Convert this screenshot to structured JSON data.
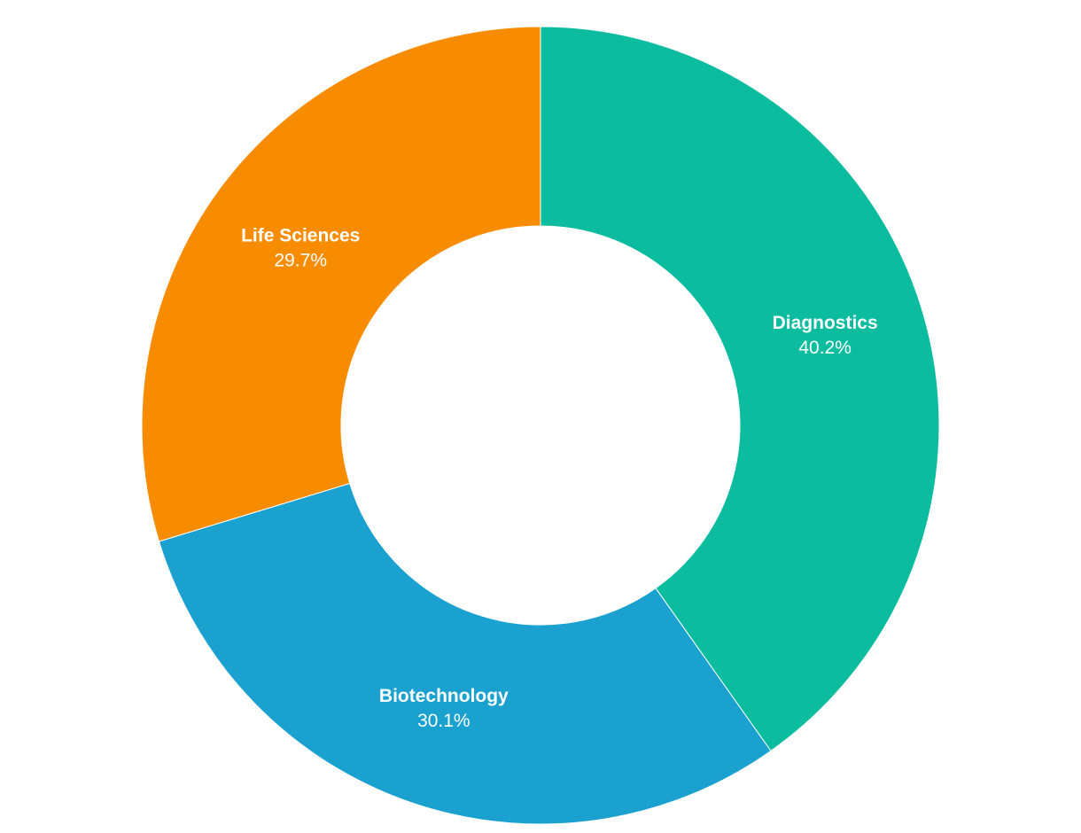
{
  "chart_data": {
    "type": "pie",
    "variant": "donut",
    "legend": "none",
    "slices": [
      {
        "label": "Diagnostics",
        "value": 40.2,
        "value_label": "40.2%",
        "color": "#0bbc9f"
      },
      {
        "label": "Biotechnology",
        "value": 30.1,
        "value_label": "30.1%",
        "color": "#1aa1cf"
      },
      {
        "label": "Life Sciences",
        "value": 29.7,
        "value_label": "29.7%",
        "color": "#f78c00"
      }
    ]
  }
}
